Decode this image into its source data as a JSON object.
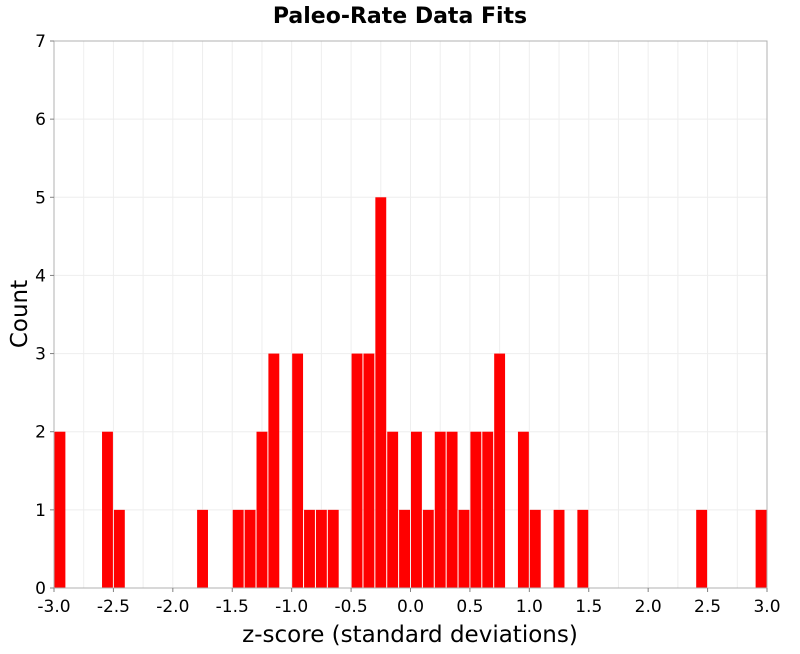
{
  "chart_data": {
    "type": "bar",
    "title": "Paleo-Rate Data Fits",
    "xlabel": "z-score (standard deviations)",
    "ylabel": "Count",
    "xlim": [
      -3.0,
      3.0
    ],
    "ylim": [
      0,
      7
    ],
    "bin_width": 0.1,
    "x_ticks": [
      "-3.0",
      "-2.5",
      "-2.0",
      "-1.5",
      "-1.0",
      "-0.5",
      "0.0",
      "0.5",
      "1.0",
      "1.5",
      "2.0",
      "2.5",
      "3.0"
    ],
    "y_ticks": [
      "0",
      "1",
      "2",
      "3",
      "4",
      "5",
      "6",
      "7"
    ],
    "grid": true,
    "bar_color": "#ff0000",
    "series": [
      {
        "name": "counts",
        "bins_start": [
          -3.0,
          -2.6,
          -2.5,
          -1.8,
          -1.5,
          -1.4,
          -1.3,
          -1.2,
          -1.0,
          -0.9,
          -0.8,
          -0.7,
          -0.5,
          -0.4,
          -0.3,
          -0.2,
          -0.1,
          0.0,
          0.1,
          0.2,
          0.3,
          0.4,
          0.5,
          0.6,
          0.7,
          0.9,
          1.0,
          1.2,
          1.4,
          2.4,
          2.9
        ],
        "values": [
          2,
          2,
          1,
          1,
          1,
          1,
          2,
          3,
          3,
          1,
          1,
          1,
          3,
          3,
          5,
          2,
          1,
          2,
          1,
          2,
          2,
          1,
          2,
          2,
          3,
          2,
          1,
          1,
          1,
          1,
          1
        ]
      }
    ]
  }
}
